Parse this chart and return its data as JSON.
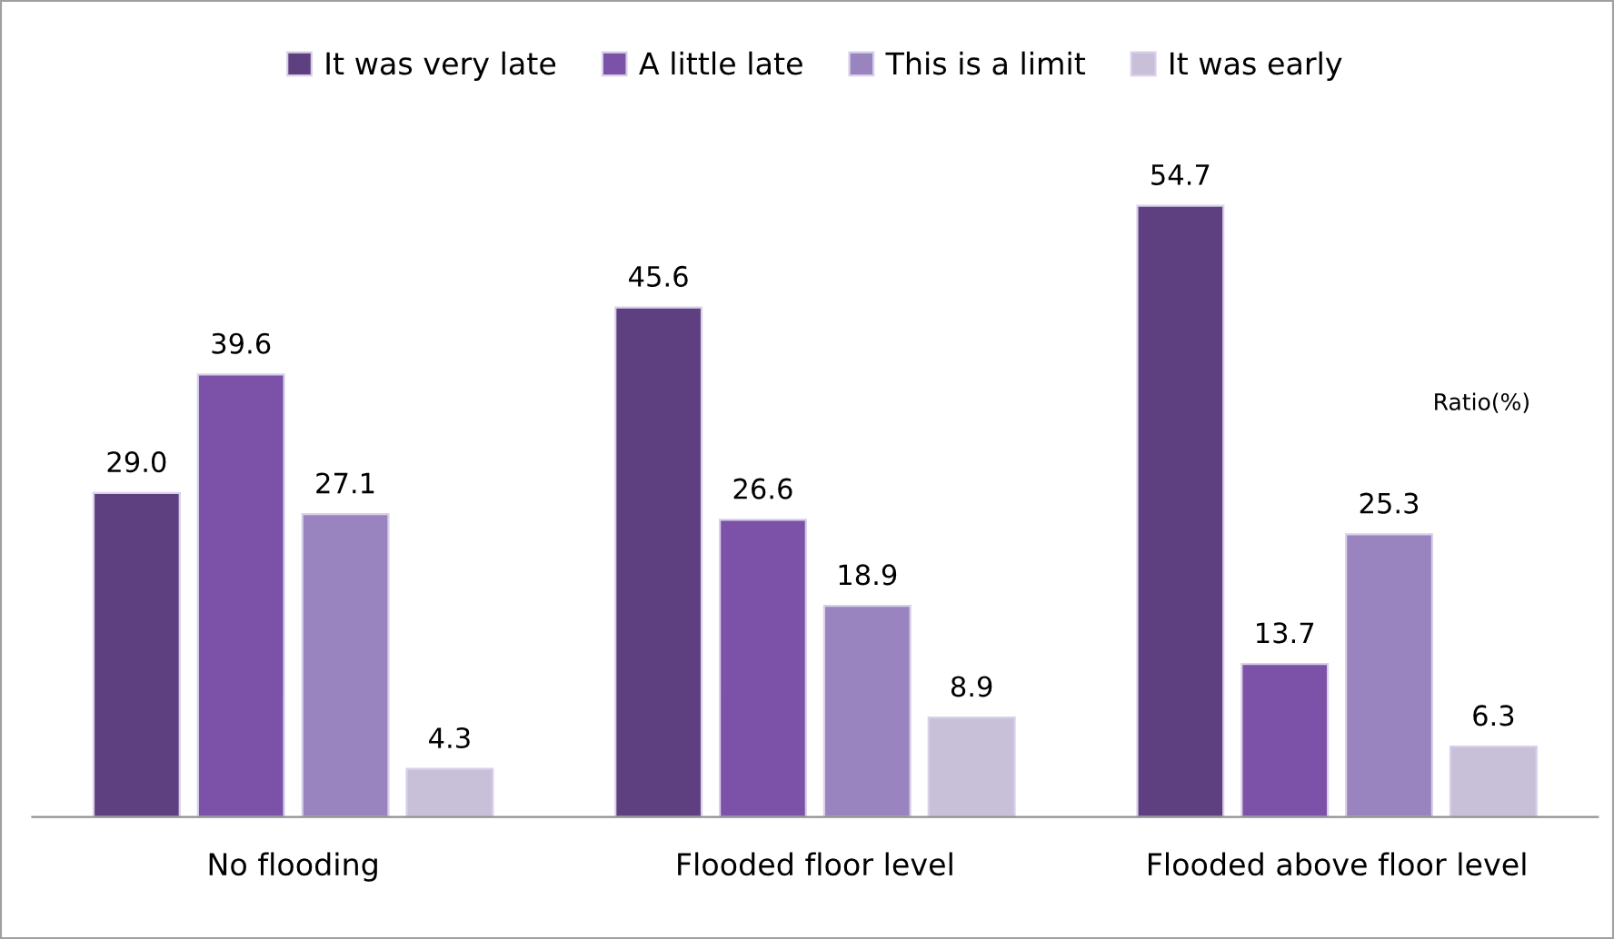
{
  "chart_data": {
    "type": "bar",
    "categories": [
      "No flooding",
      "Flooded floor level",
      "Flooded above floor level"
    ],
    "series": [
      {
        "name": "It was very late",
        "color": "#5e3f80",
        "values": [
          29.0,
          45.6,
          54.7
        ],
        "value_labels": [
          "29.0",
          "45.6",
          "54.7"
        ]
      },
      {
        "name": "A little late",
        "color": "#7b52a8",
        "values": [
          39.6,
          26.6,
          13.7
        ],
        "value_labels": [
          "39.6",
          "26.6",
          "13.7"
        ]
      },
      {
        "name": "This is a limit",
        "color": "#9a84c0",
        "values": [
          27.1,
          18.9,
          25.3
        ],
        "value_labels": [
          "27.1",
          "18.9",
          "25.3"
        ]
      },
      {
        "name": "It was early",
        "color": "#c8c0d8",
        "values": [
          4.3,
          8.9,
          6.3
        ],
        "value_labels": [
          "4.3",
          "8.9",
          "6.3"
        ]
      }
    ],
    "legend": "top",
    "grid": false,
    "annotations": [
      "Ratio(%)"
    ]
  }
}
